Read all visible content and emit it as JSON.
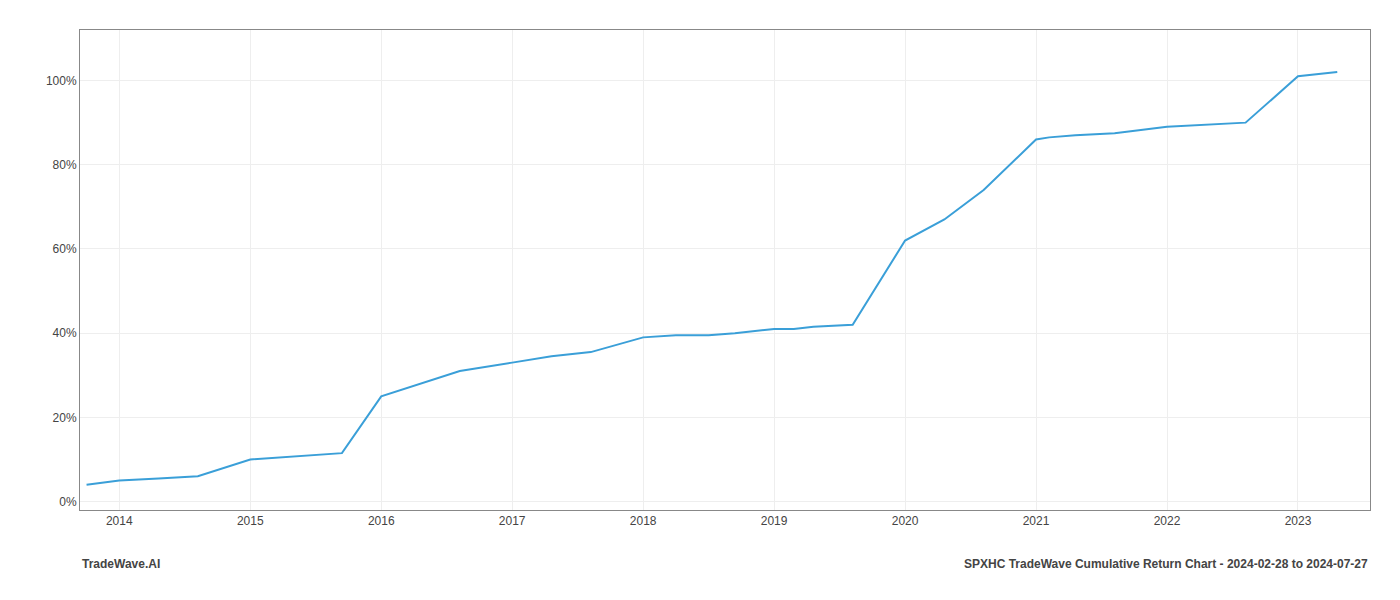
{
  "chart_data": {
    "type": "line",
    "x": [
      2013.75,
      2014.0,
      2014.3,
      2014.6,
      2015.0,
      2015.25,
      2015.5,
      2015.7,
      2016.0,
      2016.3,
      2016.6,
      2017.0,
      2017.3,
      2017.6,
      2018.0,
      2018.25,
      2018.5,
      2018.7,
      2019.0,
      2019.15,
      2019.3,
      2019.6,
      2020.0,
      2020.3,
      2020.6,
      2021.0,
      2021.1,
      2021.3,
      2021.6,
      2022.0,
      2022.3,
      2022.6,
      2023.0,
      2023.3
    ],
    "values": [
      0.04,
      0.05,
      0.055,
      0.06,
      0.1,
      0.105,
      0.11,
      0.115,
      0.25,
      0.28,
      0.31,
      0.33,
      0.345,
      0.355,
      0.39,
      0.395,
      0.395,
      0.4,
      0.41,
      0.41,
      0.415,
      0.42,
      0.62,
      0.67,
      0.74,
      0.86,
      0.865,
      0.87,
      0.875,
      0.89,
      0.895,
      0.9,
      1.01,
      1.02
    ],
    "color": "#3a9fd8",
    "xlim": [
      2013.7,
      2023.55
    ],
    "ylim": [
      -0.02,
      1.12
    ],
    "xticks": [
      2014,
      2015,
      2016,
      2017,
      2018,
      2019,
      2020,
      2021,
      2022,
      2023
    ],
    "yticks": [
      {
        "value": 0.0,
        "label": "0%"
      },
      {
        "value": 0.2,
        "label": "20%"
      },
      {
        "value": 0.4,
        "label": "40%"
      },
      {
        "value": 0.6,
        "label": "60%"
      },
      {
        "value": 0.8,
        "label": "80%"
      },
      {
        "value": 1.0,
        "label": "100%"
      }
    ],
    "grid": true,
    "annotations": [
      "TradeWave.AI",
      "SPXHC TradeWave Cumulative Return Chart - 2024-02-28 to 2024-07-27"
    ]
  }
}
